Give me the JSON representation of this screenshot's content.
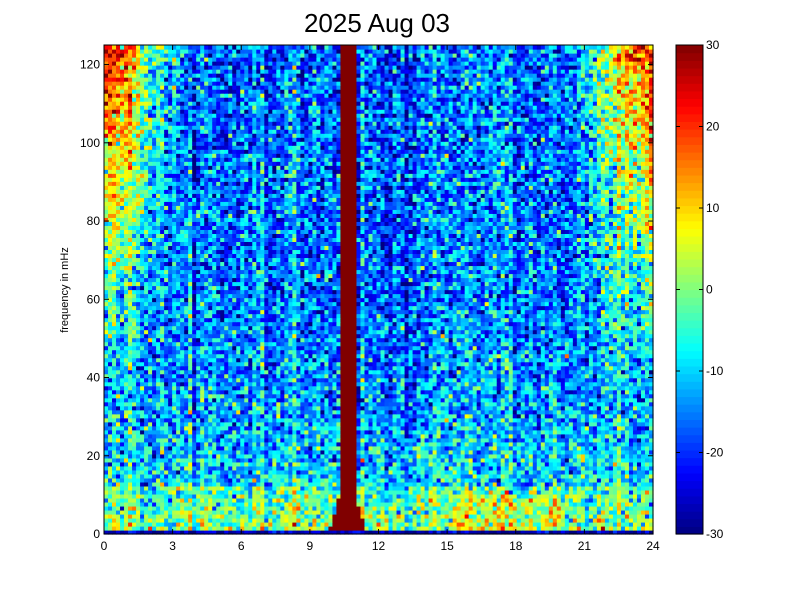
{
  "chart_data": {
    "type": "heatmap",
    "title": "2025 Aug 03",
    "xlabel": "",
    "ylabel": "frequency in mHz",
    "xlim": [
      0,
      24
    ],
    "ylim": [
      0,
      125
    ],
    "x_ticks": [
      "0",
      "3",
      "6",
      "9",
      "12",
      "15",
      "18",
      "21",
      "24"
    ],
    "y_ticks": [
      "0",
      "20",
      "40",
      "60",
      "80",
      "100",
      "120"
    ],
    "colorbar": {
      "range": [
        -30,
        30
      ],
      "ticks": [
        "-30",
        "-20",
        "-10",
        "0",
        "10",
        "20",
        "30"
      ],
      "colormap": "jet"
    },
    "grid": false,
    "description_features": {
      "background_level_high_freq": -18,
      "low_freq_level": 0,
      "bright_band_start_hour": 10.3,
      "bright_band_end_hour": 11.0,
      "bright_band_level": 30
    },
    "colors": {
      "jet_low": "#00008f",
      "jet_mid": "#7fff7f",
      "jet_high": "#800000"
    }
  }
}
